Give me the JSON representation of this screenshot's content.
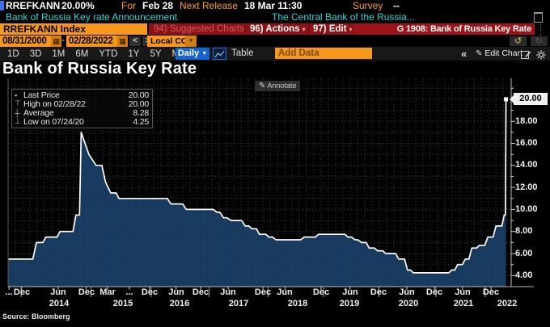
{
  "header": {
    "ticker": "RREFKANN",
    "last_value": "20.00%",
    "for_label": "For",
    "for_value": "Feb 28",
    "next_release_label": "Next Release",
    "next_release_value": "18 Mar 11:30",
    "survey_label": "Survey",
    "survey_value": "--"
  },
  "desc": {
    "left": "Bank of Russia Key rate Announcement",
    "right": "The Central Bank of the Russia..."
  },
  "cmdbar": {
    "ticker_field": "RREFKANN Index",
    "suggested": "94) Suggested Charts",
    "actions": "96) Actions",
    "edit": "97) Edit",
    "title": "G 1908: Bank of Russia Key Rate"
  },
  "datebar": {
    "from": "08/31/2000",
    "dash": "-",
    "to": "02/28/2022",
    "prev": "<",
    "next": ">",
    "ccy": "Local CCY"
  },
  "periodbar": {
    "periods": [
      "1D",
      "3D",
      "1M",
      "6M",
      "YTD",
      "1Y",
      "5Y",
      "Max"
    ],
    "frequency": "Daily",
    "table": "Table",
    "add_data": "Add Data",
    "collapse": "«",
    "edit_chart": "Edit Chart"
  },
  "icons": {
    "dropdown": "▾",
    "daily_dropdown": "▼",
    "undo": "↺",
    "redo": "↻",
    "pencil": "✎",
    "calendar": "▦",
    "dots": "⋮ ⋮"
  },
  "chart": {
    "title": "Bank of Russia Key Rate",
    "annotate": "Annotate",
    "legend": [
      {
        "marker": "▪",
        "label": "Last Price",
        "value": "20.00"
      },
      {
        "marker": "⊤",
        "label": "High on 02/28/22",
        "value": "20.00"
      },
      {
        "marker": "┼",
        "label": "Average",
        "value": "8.28"
      },
      {
        "marker": "⊥",
        "label": "Low on 07/24/20",
        "value": "4.25"
      }
    ],
    "last_price": "20.00",
    "source": "Source: Bloomberg"
  },
  "chart_data": {
    "type": "area",
    "title": "Bank of Russia Key Rate",
    "x_unit": "decimal_year",
    "x_range": [
      2013.72,
      2022.22
    ],
    "y_range_visible": [
      3.0,
      21.9
    ],
    "y_ticks": [
      4,
      6,
      8,
      10,
      12,
      14,
      16,
      18,
      20
    ],
    "y_axis_side": "right",
    "grid": "dotted",
    "line_color": "#ffffff",
    "fill_color": "#163a60",
    "points": [
      [
        2013.72,
        5.5
      ],
      [
        2014.14,
        5.5
      ],
      [
        2014.2,
        7.0
      ],
      [
        2014.31,
        7.0
      ],
      [
        2014.36,
        7.5
      ],
      [
        2014.55,
        7.5
      ],
      [
        2014.6,
        8.0
      ],
      [
        2014.82,
        8.0
      ],
      [
        2014.87,
        9.5
      ],
      [
        2014.93,
        9.5
      ],
      [
        2014.96,
        17.0
      ],
      [
        2015.09,
        15.0
      ],
      [
        2015.21,
        14.0
      ],
      [
        2015.31,
        14.0
      ],
      [
        2015.37,
        12.5
      ],
      [
        2015.46,
        11.5
      ],
      [
        2015.55,
        11.5
      ],
      [
        2015.6,
        11.0
      ],
      [
        2016.42,
        11.0
      ],
      [
        2016.48,
        10.5
      ],
      [
        2016.68,
        10.5
      ],
      [
        2016.74,
        10.0
      ],
      [
        2017.2,
        10.0
      ],
      [
        2017.26,
        9.75
      ],
      [
        2017.31,
        9.75
      ],
      [
        2017.37,
        9.25
      ],
      [
        2017.43,
        9.25
      ],
      [
        2017.5,
        9.0
      ],
      [
        2017.68,
        9.0
      ],
      [
        2017.74,
        8.5
      ],
      [
        2017.8,
        8.5
      ],
      [
        2017.85,
        8.25
      ],
      [
        2017.93,
        8.25
      ],
      [
        2017.98,
        7.75
      ],
      [
        2018.09,
        7.75
      ],
      [
        2018.14,
        7.5
      ],
      [
        2018.2,
        7.5
      ],
      [
        2018.26,
        7.25
      ],
      [
        2018.68,
        7.25
      ],
      [
        2018.74,
        7.5
      ],
      [
        2018.93,
        7.5
      ],
      [
        2018.98,
        7.75
      ],
      [
        2019.43,
        7.75
      ],
      [
        2019.48,
        7.5
      ],
      [
        2019.54,
        7.5
      ],
      [
        2019.6,
        7.25
      ],
      [
        2019.65,
        7.25
      ],
      [
        2019.71,
        7.0
      ],
      [
        2019.79,
        7.0
      ],
      [
        2019.84,
        6.5
      ],
      [
        2019.93,
        6.5
      ],
      [
        2019.98,
        6.25
      ],
      [
        2020.07,
        6.25
      ],
      [
        2020.12,
        6.0
      ],
      [
        2020.29,
        6.0
      ],
      [
        2020.34,
        5.5
      ],
      [
        2020.44,
        5.5
      ],
      [
        2020.49,
        4.5
      ],
      [
        2020.54,
        4.5
      ],
      [
        2020.59,
        4.25
      ],
      [
        2021.19,
        4.25
      ],
      [
        2021.24,
        4.5
      ],
      [
        2021.29,
        4.5
      ],
      [
        2021.34,
        5.0
      ],
      [
        2021.42,
        5.0
      ],
      [
        2021.47,
        5.5
      ],
      [
        2021.53,
        5.5
      ],
      [
        2021.58,
        6.5
      ],
      [
        2021.66,
        6.5
      ],
      [
        2021.71,
        6.75
      ],
      [
        2021.8,
        6.75
      ],
      [
        2021.85,
        7.5
      ],
      [
        2021.94,
        7.5
      ],
      [
        2021.99,
        8.5
      ],
      [
        2022.09,
        8.5
      ],
      [
        2022.13,
        9.5
      ],
      [
        2022.15,
        9.5
      ],
      [
        2022.16,
        20.0
      ]
    ],
    "x_month_labels": [
      {
        "t": "...",
        "p": 0.2
      },
      {
        "t": "Dec",
        "p": 2.7
      },
      {
        "t": "Jun",
        "p": 10.0
      },
      {
        "t": "Dec",
        "p": 15.6
      },
      {
        "t": "Mar",
        "p": 19.8
      },
      {
        "t": "...",
        "p": 24.2
      },
      {
        "t": "Dec",
        "p": 28.2
      },
      {
        "t": "Jun",
        "p": 33.5
      },
      {
        "t": "Dec",
        "p": 38.4
      },
      {
        "t": "Jun",
        "p": 43.9
      },
      {
        "t": "Dec",
        "p": 50.8
      },
      {
        "t": "Jun",
        "p": 55.2
      },
      {
        "t": "Dec",
        "p": 62.4
      },
      {
        "t": "Jun",
        "p": 68.2
      },
      {
        "t": "Dec",
        "p": 73.9
      },
      {
        "t": "Jun",
        "p": 79.5
      },
      {
        "t": "Dec",
        "p": 85.0
      },
      {
        "t": "Jun",
        "p": 90.6
      },
      {
        "t": "Dec",
        "p": 96.3
      }
    ],
    "x_year_labels": [
      {
        "t": "2014",
        "p": 10.2
      },
      {
        "t": "2015",
        "p": 22.9
      },
      {
        "t": "2016",
        "p": 34.2
      },
      {
        "t": "2017",
        "p": 46.0
      },
      {
        "t": "2018",
        "p": 57.7
      },
      {
        "t": "2019",
        "p": 68.1
      },
      {
        "t": "2020",
        "p": 79.8
      },
      {
        "t": "2021",
        "p": 90.8
      },
      {
        "t": "2022",
        "p": 99.5
      }
    ]
  }
}
